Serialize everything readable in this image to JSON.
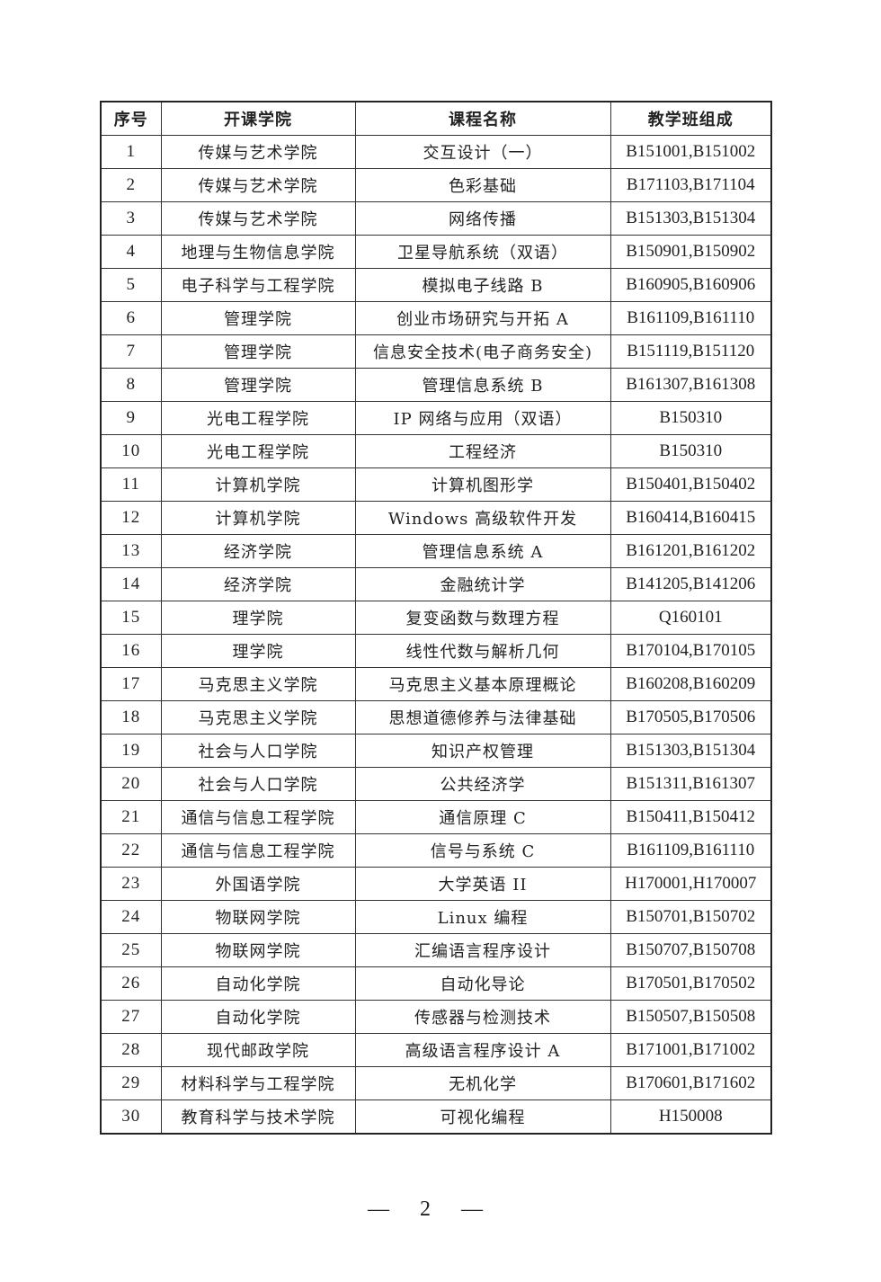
{
  "table": {
    "headers": [
      "序号",
      "开课学院",
      "课程名称",
      "教学班组成"
    ],
    "rows": [
      [
        "1",
        "传媒与艺术学院",
        "交互设计（一）",
        "B151001,B151002"
      ],
      [
        "2",
        "传媒与艺术学院",
        "色彩基础",
        "B171103,B171104"
      ],
      [
        "3",
        "传媒与艺术学院",
        "网络传播",
        "B151303,B151304"
      ],
      [
        "4",
        "地理与生物信息学院",
        "卫星导航系统（双语）",
        "B150901,B150902"
      ],
      [
        "5",
        "电子科学与工程学院",
        "模拟电子线路 B",
        "B160905,B160906"
      ],
      [
        "6",
        "管理学院",
        "创业市场研究与开拓 A",
        "B161109,B161110"
      ],
      [
        "7",
        "管理学院",
        "信息安全技术(电子商务安全)",
        "B151119,B151120"
      ],
      [
        "8",
        "管理学院",
        "管理信息系统 B",
        "B161307,B161308"
      ],
      [
        "9",
        "光电工程学院",
        "IP 网络与应用（双语）",
        "B150310"
      ],
      [
        "10",
        "光电工程学院",
        "工程经济",
        "B150310"
      ],
      [
        "11",
        "计算机学院",
        "计算机图形学",
        "B150401,B150402"
      ],
      [
        "12",
        "计算机学院",
        "Windows 高级软件开发",
        "B160414,B160415"
      ],
      [
        "13",
        "经济学院",
        "管理信息系统 A",
        "B161201,B161202"
      ],
      [
        "14",
        "经济学院",
        "金融统计学",
        "B141205,B141206"
      ],
      [
        "15",
        "理学院",
        "复变函数与数理方程",
        "Q160101"
      ],
      [
        "16",
        "理学院",
        "线性代数与解析几何",
        "B170104,B170105"
      ],
      [
        "17",
        "马克思主义学院",
        "马克思主义基本原理概论",
        "B160208,B160209"
      ],
      [
        "18",
        "马克思主义学院",
        "思想道德修养与法律基础",
        "B170505,B170506"
      ],
      [
        "19",
        "社会与人口学院",
        "知识产权管理",
        "B151303,B151304"
      ],
      [
        "20",
        "社会与人口学院",
        "公共经济学",
        "B151311,B161307"
      ],
      [
        "21",
        "通信与信息工程学院",
        "通信原理 C",
        "B150411,B150412"
      ],
      [
        "22",
        "通信与信息工程学院",
        "信号与系统 C",
        "B161109,B161110"
      ],
      [
        "23",
        "外国语学院",
        "大学英语 II",
        "H170001,H170007"
      ],
      [
        "24",
        "物联网学院",
        "Linux 编程",
        "B150701,B150702"
      ],
      [
        "25",
        "物联网学院",
        "汇编语言程序设计",
        "B150707,B150708"
      ],
      [
        "26",
        "自动化学院",
        "自动化导论",
        "B170501,B170502"
      ],
      [
        "27",
        "自动化学院",
        "传感器与检测技术",
        "B150507,B150508"
      ],
      [
        "28",
        "现代邮政学院",
        "高级语言程序设计 A",
        "B171001,B171002"
      ],
      [
        "29",
        "材料科学与工程学院",
        "无机化学",
        "B170601,B171602"
      ],
      [
        "30",
        "教育科学与技术学院",
        "可视化编程",
        "H150008"
      ]
    ]
  },
  "footer": {
    "page_number": "— 2 —"
  }
}
